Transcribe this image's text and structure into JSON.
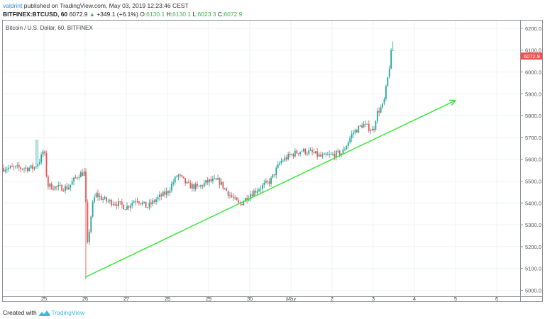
{
  "header": {
    "author": "valdrint",
    "published_text": "published on TradingView.com, May 03, 2019 12:23:46 CEST",
    "symbol": "BITFINEX:BTCUSD, 60",
    "last": "6072.9",
    "change": "+349.1 (+6.1%)",
    "open_label": "O:",
    "open": "6130.1",
    "high_label": "H:",
    "high": "6130.1",
    "low_label": "L:",
    "low": "6023.3",
    "close_label": "C:",
    "close": "6072.9"
  },
  "plot_title": "Bitcoin / U.S. Dollar, 60, BITFINEX",
  "footer": {
    "created_with": "Created with",
    "brand": "TradingView"
  },
  "colors": {
    "up": "#26a69a",
    "down": "#ef5350",
    "grid": "#eef2f6",
    "axis": "#8a8e96",
    "trendline": "#39e83a",
    "price_label_bg": "#ef5350"
  },
  "chart_data": {
    "type": "candlestick",
    "title": "Bitcoin / U.S. Dollar, 60, BITFINEX",
    "xlabel": "",
    "ylabel": "",
    "ylim": [
      5000,
      6200
    ],
    "y_ticks": [
      "6200.0",
      "6100.0",
      "6000.0",
      "5900.0",
      "5800.0",
      "5700.0",
      "5600.0",
      "5500.0",
      "5400.0",
      "5300.0",
      "5200.0",
      "5100.0",
      "5000.0"
    ],
    "x_ticks": [
      "25",
      "26",
      "27",
      "28",
      "29",
      "30",
      "May",
      "2",
      "3",
      "4",
      "5",
      "6"
    ],
    "grid": true,
    "current_price_label": "6072.9",
    "approx_close_path": [
      {
        "day": "Apr 24 18:00",
        "price": 5560
      },
      {
        "day": "Apr 24 22:00",
        "price": 5600
      },
      {
        "day": "Apr 25 00:00",
        "price": 5650
      },
      {
        "day": "Apr 25 02:00",
        "price": 5480
      },
      {
        "day": "Apr 25 08:00",
        "price": 5470
      },
      {
        "day": "Apr 25 14:00",
        "price": 5470
      },
      {
        "day": "Apr 25 20:00",
        "price": 5530
      },
      {
        "day": "Apr 26 00:00",
        "price": 5540
      },
      {
        "day": "Apr 26 01:00",
        "price": 5180
      },
      {
        "day": "Apr 26 04:00",
        "price": 5380
      },
      {
        "day": "Apr 26 06:00",
        "price": 5440
      },
      {
        "day": "Apr 26 12:00",
        "price": 5410
      },
      {
        "day": "Apr 26 18:00",
        "price": 5400
      },
      {
        "day": "Apr 27 00:00",
        "price": 5380
      },
      {
        "day": "Apr 27 06:00",
        "price": 5420
      },
      {
        "day": "Apr 27 12:00",
        "price": 5380
      },
      {
        "day": "Apr 27 18:00",
        "price": 5420
      },
      {
        "day": "Apr 28 00:00",
        "price": 5450
      },
      {
        "day": "Apr 28 06:00",
        "price": 5530
      },
      {
        "day": "Apr 28 12:00",
        "price": 5480
      },
      {
        "day": "Apr 28 18:00",
        "price": 5470
      },
      {
        "day": "Apr 29 00:00",
        "price": 5500
      },
      {
        "day": "Apr 29 06:00",
        "price": 5500
      },
      {
        "day": "Apr 29 12:00",
        "price": 5440
      },
      {
        "day": "Apr 29 18:00",
        "price": 5390
      },
      {
        "day": "Apr 30 00:00",
        "price": 5440
      },
      {
        "day": "Apr 30 06:00",
        "price": 5470
      },
      {
        "day": "Apr 30 12:00",
        "price": 5500
      },
      {
        "day": "Apr 30 18:00",
        "price": 5590
      },
      {
        "day": "May 01 00:00",
        "price": 5620
      },
      {
        "day": "May 01 06:00",
        "price": 5640
      },
      {
        "day": "May 01 12:00",
        "price": 5630
      },
      {
        "day": "May 01 18:00",
        "price": 5610
      },
      {
        "day": "May 02 00:00",
        "price": 5620
      },
      {
        "day": "May 02 06:00",
        "price": 5630
      },
      {
        "day": "May 02 12:00",
        "price": 5720
      },
      {
        "day": "May 02 18:00",
        "price": 5760
      },
      {
        "day": "May 03 00:00",
        "price": 5730
      },
      {
        "day": "May 03 02:00",
        "price": 5810
      },
      {
        "day": "May 03 06:00",
        "price": 5850
      },
      {
        "day": "May 03 09:00",
        "price": 6000
      },
      {
        "day": "May 03 11:00",
        "price": 6120
      },
      {
        "day": "May 03 12:00",
        "price": 6072.9
      }
    ],
    "trendline": {
      "from": {
        "day": "Apr 26 00:00",
        "price": 5060
      },
      "to": {
        "day": "May 05 00:00",
        "price": 5870
      },
      "arrow": true
    }
  }
}
